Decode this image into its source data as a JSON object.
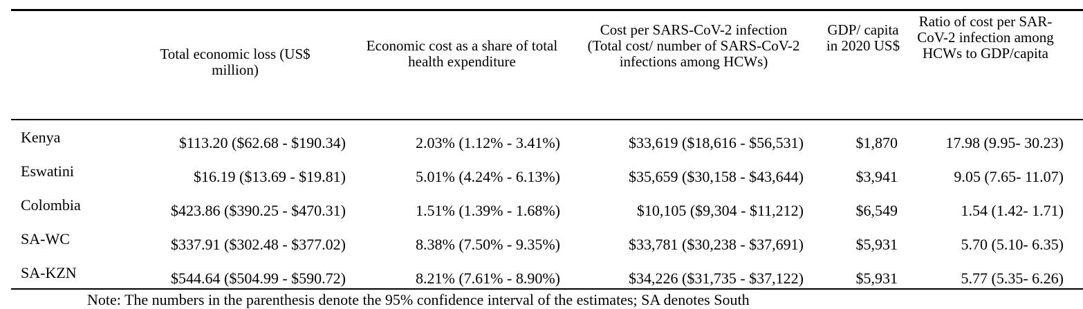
{
  "table": {
    "headers": [
      "",
      "Total economic loss (US$ million)",
      "Economic cost as a share of total health expenditure",
      "Cost per SARS-CoV-2 infection (Total cost/ number of SARS-CoV-2 infections among HCWs)",
      "GDP/ capita in 2020 US$",
      "Ratio of cost per SAR-CoV-2 infection among HCWs to GDP/capita"
    ],
    "rows": [
      [
        "Kenya",
        "$113.20 ($62.68 - $190.34)",
        "2.03% (1.12% - 3.41%)",
        "$33,619 ($18,616 - $56,531)",
        "$1,870",
        "17.98 (9.95- 30.23)"
      ],
      [
        "Eswatini",
        "$16.19 ($13.69 - $19.81)",
        "5.01% (4.24% - 6.13%)",
        "$35,659 ($30,158 - $43,644)",
        "$3,941",
        "9.05 (7.65- 11.07)"
      ],
      [
        "Colombia",
        "$423.86 ($390.25 - $470.31)",
        "1.51% (1.39% - 1.68%)",
        "$10,105 ($9,304 - $11,212)",
        "$6,549",
        "1.54 (1.42- 1.71)"
      ],
      [
        "SA-WC",
        "$337.91 ($302.48 - $377.02)",
        "8.38% (7.50% - 9.35%)",
        "$33,781 ($30,238 - $37,691)",
        "$5,931",
        "5.70 (5.10- 6.35)"
      ],
      [
        "SA-KZN",
        "$544.64 ($504.99 - $590.72)",
        "8.21% (7.61% - 8.90%)",
        "$34,226 ($31,735 - $37,122)",
        "$5,931",
        "5.77 (5.35- 6.26)"
      ]
    ]
  },
  "note": "Note: The numbers in the parenthesis denote the 95% confidence interval of the estimates; SA denotes South"
}
